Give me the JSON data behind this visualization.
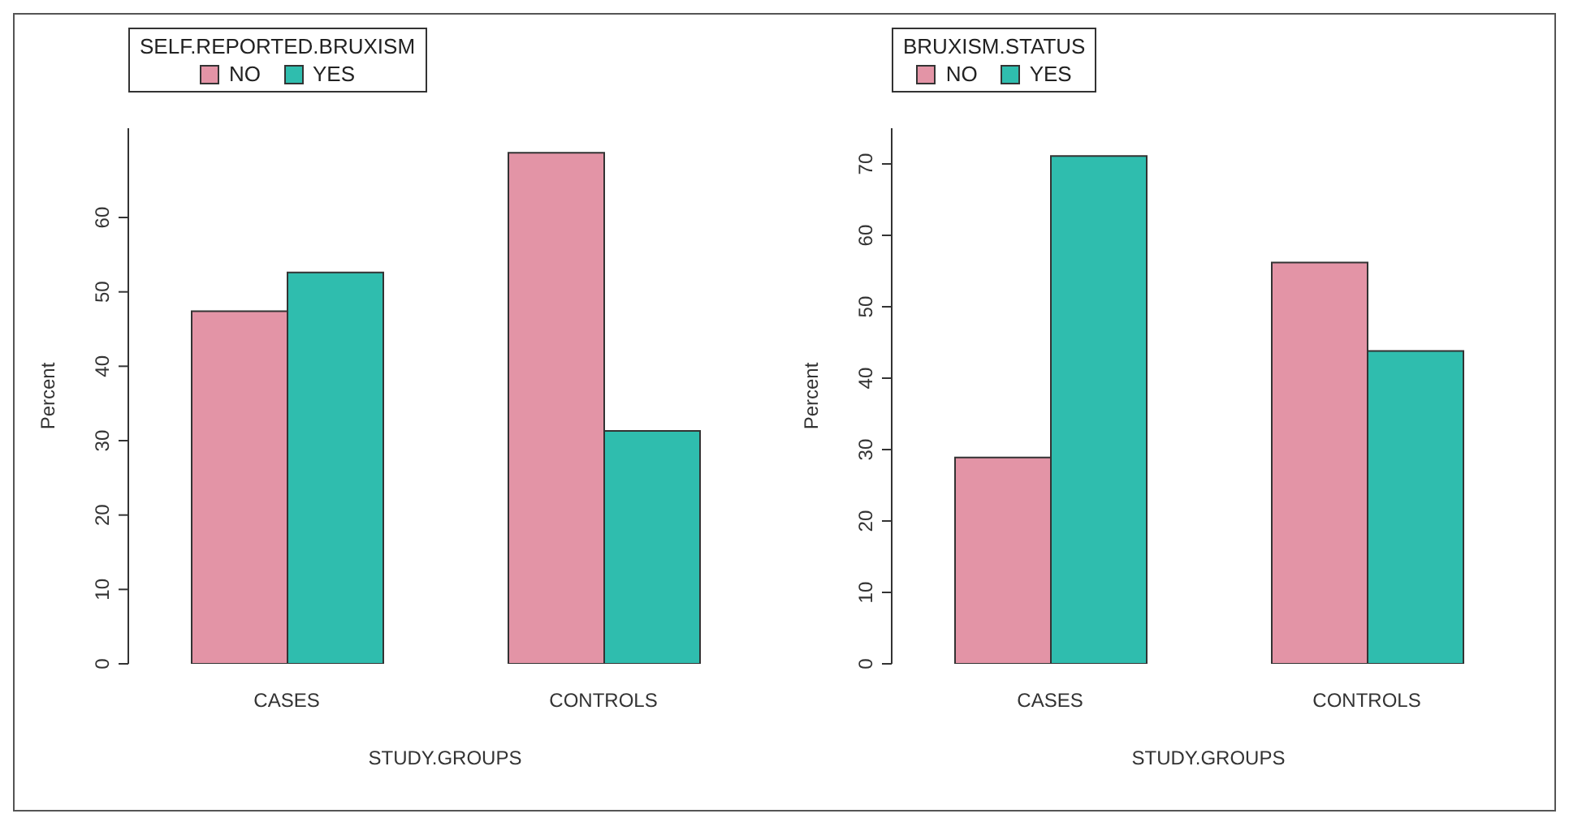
{
  "chart_data": [
    {
      "type": "bar",
      "categories": [
        "CASES",
        "CONTROLS"
      ],
      "xlabel": "STUDY.GROUPS",
      "ylabel": "Percent",
      "legend_title": "SELF.REPORTED.BRUXISM",
      "legend": "top left",
      "grid": false,
      "ylim": [
        0,
        72
      ],
      "yticks": [
        0,
        10,
        20,
        30,
        40,
        50,
        60
      ],
      "series": [
        {
          "name": "NO",
          "color": "#e394a6",
          "values": [
            47.4,
            68.7
          ]
        },
        {
          "name": "YES",
          "color": "#2fbdae",
          "values": [
            52.6,
            31.3
          ]
        }
      ]
    },
    {
      "type": "bar",
      "categories": [
        "CASES",
        "CONTROLS"
      ],
      "xlabel": "STUDY.GROUPS",
      "ylabel": "Percent",
      "legend_title": "BRUXISM.STATUS",
      "legend": "top left",
      "grid": false,
      "ylim": [
        0,
        75
      ],
      "yticks": [
        0,
        10,
        20,
        30,
        40,
        50,
        60,
        70
      ],
      "series": [
        {
          "name": "NO",
          "color": "#e394a6",
          "values": [
            28.9,
            56.2
          ]
        },
        {
          "name": "YES",
          "color": "#2fbdae",
          "values": [
            71.1,
            43.8
          ]
        }
      ]
    }
  ]
}
